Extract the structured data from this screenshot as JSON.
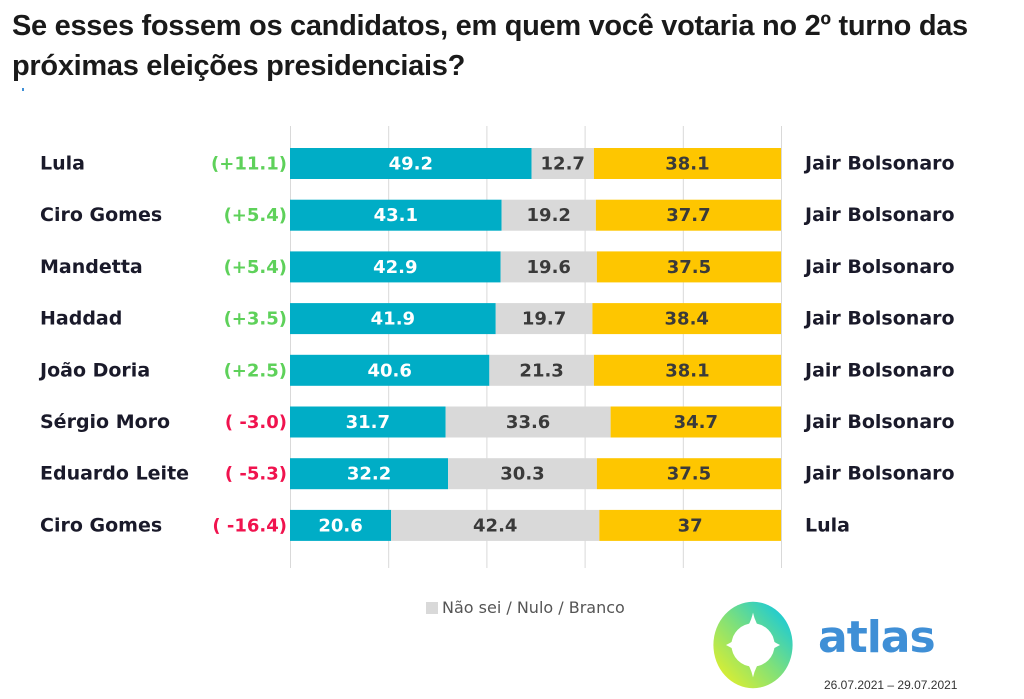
{
  "chart_data": {
    "type": "bar",
    "stacked": true,
    "orientation": "horizontal",
    "title": "Se esses fossem os candidatos, em quem você votaria no 2º turno das próximas eleições presidenciais?",
    "xlim": [
      0,
      100
    ],
    "grid": true,
    "rows": [
      {
        "left": "Lula",
        "diff": "(+11.1)",
        "diff_sign": "positive",
        "left_value": 49.2,
        "neutral_value": 12.7,
        "right_value": 38.1,
        "right": "Jair Bolsonaro",
        "left_label": "49.2",
        "neutral_label": "12.7",
        "right_label": "38.1"
      },
      {
        "left": "Ciro Gomes",
        "diff": "(+5.4)",
        "diff_sign": "positive",
        "left_value": 43.1,
        "neutral_value": 19.2,
        "right_value": 37.7,
        "right": "Jair Bolsonaro",
        "left_label": "43.1",
        "neutral_label": "19.2",
        "right_label": "37.7"
      },
      {
        "left": "Mandetta",
        "diff": "(+5.4)",
        "diff_sign": "positive",
        "left_value": 42.9,
        "neutral_value": 19.6,
        "right_value": 37.5,
        "right": "Jair Bolsonaro",
        "left_label": "42.9",
        "neutral_label": "19.6",
        "right_label": "37.5"
      },
      {
        "left": "Haddad",
        "diff": "(+3.5)",
        "diff_sign": "positive",
        "left_value": 41.9,
        "neutral_value": 19.7,
        "right_value": 38.4,
        "right": "Jair Bolsonaro",
        "left_label": "41.9",
        "neutral_label": "19.7",
        "right_label": "38.4"
      },
      {
        "left": "João Doria",
        "diff": "(+2.5)",
        "diff_sign": "positive",
        "left_value": 40.6,
        "neutral_value": 21.3,
        "right_value": 38.1,
        "right": "Jair Bolsonaro",
        "left_label": "40.6",
        "neutral_label": "21.3",
        "right_label": "38.1"
      },
      {
        "left": "Sérgio Moro",
        "diff": "( -3.0)",
        "diff_sign": "negative",
        "left_value": 31.7,
        "neutral_value": 33.6,
        "right_value": 34.7,
        "right": "Jair Bolsonaro",
        "left_label": "31.7",
        "neutral_label": "33.6",
        "right_label": "34.7"
      },
      {
        "left": "Eduardo Leite",
        "diff": "( -5.3)",
        "diff_sign": "negative",
        "left_value": 32.2,
        "neutral_value": 30.3,
        "right_value": 37.5,
        "right": "Jair Bolsonaro",
        "left_label": "32.2",
        "neutral_label": "30.3",
        "right_label": "37.5"
      },
      {
        "left": "Ciro Gomes",
        "diff": "( -16.4)",
        "diff_sign": "negative",
        "left_value": 20.6,
        "neutral_value": 42.4,
        "right_value": 37,
        "right": "Lula",
        "left_label": "20.6",
        "neutral_label": "42.4",
        "right_label": "37"
      }
    ],
    "legend": [
      {
        "name": "Não sei / Nulo / Branco",
        "color": "#d9d9d9"
      }
    ],
    "legend_position": "bottom-center"
  },
  "colors": {
    "left": "#00adc6",
    "neutral": "#d9d9d9",
    "right": "#fec600",
    "positive": "#5ed15a",
    "negative": "#f0134e",
    "left_text": "#ffffff",
    "neutral_text": "#3a3a3a",
    "right_text": "#3a3a3a",
    "grid": "#d9d9d9"
  },
  "footer": {
    "brand": "atlas",
    "dates": "26.07.2021 – 29.07.2021"
  }
}
